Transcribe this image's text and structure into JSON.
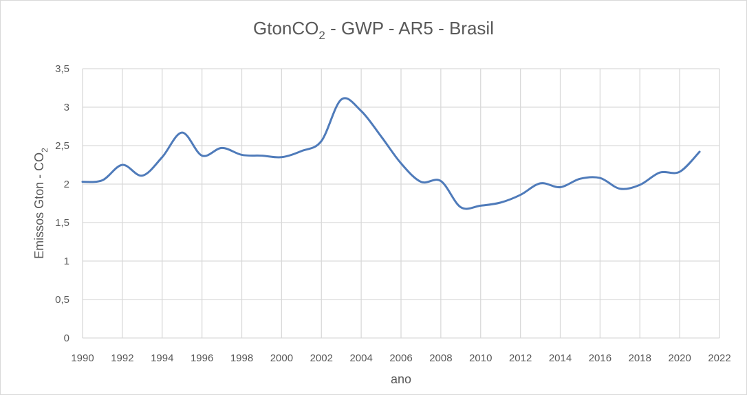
{
  "chart_data": {
    "type": "line",
    "title": "GtonCO",
    "title_sub": "2",
    "title_suffix": " - GWP - AR5 - Brasil",
    "xlabel": "ano",
    "ylabel": "Emissos Gton - CO",
    "ylabel_sub": "2",
    "xlim": [
      1990,
      2022
    ],
    "ylim": [
      0,
      3.5
    ],
    "x_ticks": [
      1990,
      1992,
      1994,
      1996,
      1998,
      2000,
      2002,
      2004,
      2006,
      2008,
      2010,
      2012,
      2014,
      2016,
      2018,
      2020,
      2022
    ],
    "y_ticks": [
      0,
      0.5,
      1,
      1.5,
      2,
      2.5,
      3,
      3.5
    ],
    "y_tick_labels": [
      "0",
      "0,5",
      "1",
      "1,5",
      "2",
      "2,5",
      "3",
      "3,5"
    ],
    "grid": true,
    "series": [
      {
        "name": "GtonCO2 - GWP - AR5 - Brasil",
        "color": "#4f7bba",
        "x": [
          1990,
          1991,
          1992,
          1993,
          1994,
          1995,
          1996,
          1997,
          1998,
          1999,
          2000,
          2001,
          2002,
          2003,
          2004,
          2005,
          2006,
          2007,
          2008,
          2009,
          2010,
          2011,
          2012,
          2013,
          2014,
          2015,
          2016,
          2017,
          2018,
          2019,
          2020,
          2021
        ],
        "values": [
          2.03,
          2.05,
          2.25,
          2.11,
          2.35,
          2.67,
          2.37,
          2.47,
          2.38,
          2.37,
          2.35,
          2.43,
          2.56,
          3.1,
          2.95,
          2.62,
          2.27,
          2.03,
          2.04,
          1.7,
          1.72,
          1.76,
          1.86,
          2.01,
          1.96,
          2.07,
          2.08,
          1.94,
          1.99,
          2.15,
          2.16,
          2.42
        ]
      }
    ]
  }
}
